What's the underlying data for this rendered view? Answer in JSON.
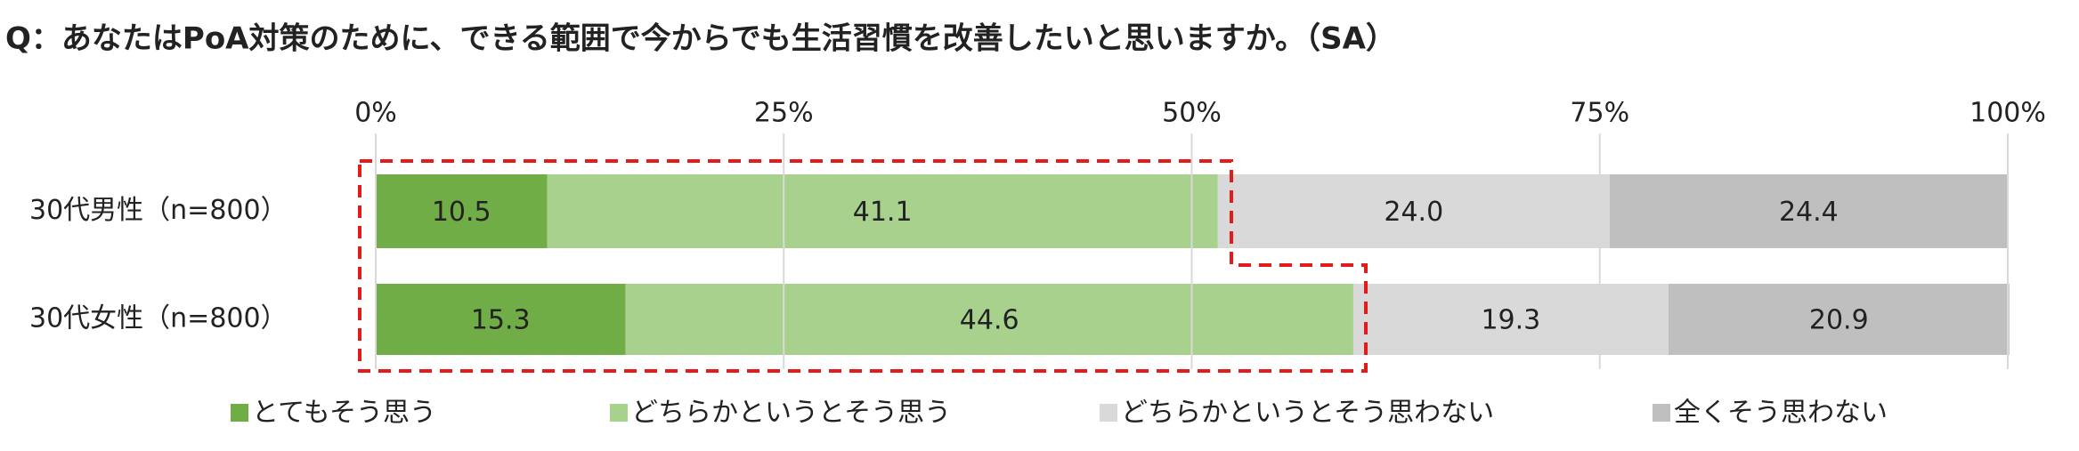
{
  "chart_data": {
    "type": "bar",
    "orientation": "horizontal",
    "stacked": true,
    "title": "Q：あなたはPoA対策のために、できる範囲で今からでも生活習慣を改善したいと思いますか。（SA）",
    "categories": [
      "30代男性（n=800）",
      "30代女性（n=800）"
    ],
    "series": [
      {
        "name": "とてもそう思う",
        "color": "#70ad47",
        "values": [
          10.5,
          15.3
        ]
      },
      {
        "name": "どちらかというとそう思う",
        "color": "#a9d18e",
        "values": [
          41.1,
          44.6
        ]
      },
      {
        "name": "どちらかというとそう思わない",
        "color": "#d9d9d9",
        "values": [
          24.0,
          19.3
        ],
        "value_labels": [
          "24.0",
          "19.3"
        ]
      },
      {
        "name": "全くそう思わない",
        "color": "#bfbfbf",
        "values": [
          24.4,
          20.9
        ]
      }
    ],
    "xlim": [
      0,
      100
    ],
    "xticks": [
      {
        "value": 0,
        "label": "0%"
      },
      {
        "value": 25,
        "label": "25%"
      },
      {
        "value": 50,
        "label": "50%"
      },
      {
        "value": 75,
        "label": "75%"
      },
      {
        "value": 100,
        "label": "100%"
      }
    ],
    "grid": true,
    "legend": "bottom"
  }
}
